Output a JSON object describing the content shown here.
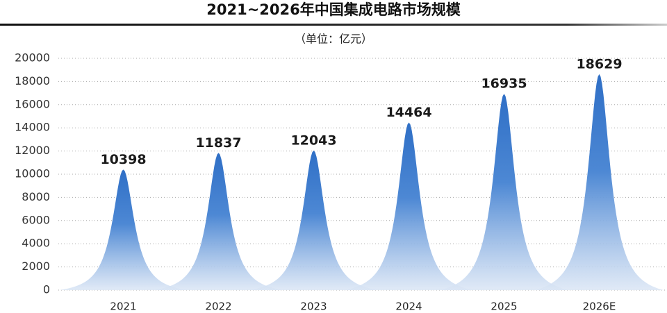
{
  "chart_data": {
    "type": "peak",
    "title": "2021~2026年中国集成电路市场规模",
    "subtitle": "（单位：亿元）",
    "categories": [
      "2021",
      "2022",
      "2023",
      "2024",
      "2025",
      "2026E"
    ],
    "values": [
      10398,
      11837,
      12043,
      14464,
      16935,
      18629
    ],
    "color": "#2f6fc6",
    "ylim": [
      0,
      20000
    ],
    "yticks": [
      0,
      2000,
      4000,
      6000,
      8000,
      10000,
      12000,
      14000,
      16000,
      18000,
      20000
    ],
    "grid": true
  }
}
